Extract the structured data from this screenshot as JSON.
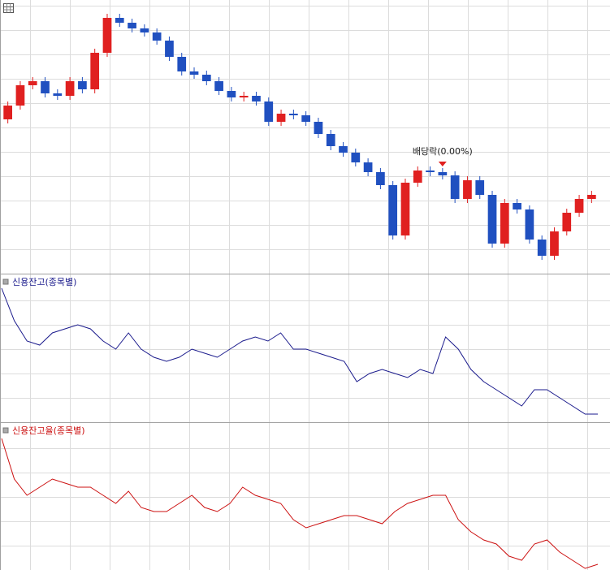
{
  "chart_data": [
    {
      "type": "candlestick",
      "annotation": "배당락(0.00%)",
      "open": [
        190,
        207,
        232,
        237,
        222,
        219,
        237,
        227,
        272,
        315,
        309,
        302,
        297,
        287,
        267,
        249,
        245,
        237,
        225,
        217,
        219,
        212,
        187,
        197,
        195,
        187,
        172,
        157,
        149,
        137,
        125,
        109,
        47,
        112,
        127,
        125,
        121,
        92,
        115,
        97,
        37,
        87,
        79,
        42,
        22,
        52,
        75,
        92
      ],
      "high": [
        212,
        237,
        242,
        242,
        227,
        242,
        242,
        277,
        320,
        320,
        314,
        307,
        302,
        292,
        272,
        254,
        250,
        242,
        230,
        224,
        224,
        217,
        202,
        202,
        200,
        192,
        177,
        162,
        154,
        142,
        130,
        114,
        117,
        132,
        132,
        130,
        126,
        120,
        120,
        102,
        92,
        92,
        84,
        47,
        57,
        80,
        97,
        102
      ],
      "low": [
        185,
        202,
        227,
        217,
        214,
        214,
        222,
        222,
        267,
        304,
        297,
        292,
        282,
        262,
        244,
        240,
        232,
        220,
        212,
        212,
        207,
        182,
        182,
        190,
        182,
        167,
        152,
        144,
        132,
        120,
        104,
        42,
        42,
        107,
        120,
        116,
        87,
        87,
        92,
        32,
        32,
        74,
        37,
        17,
        17,
        47,
        70,
        87
      ],
      "close": [
        207,
        232,
        237,
        222,
        219,
        237,
        227,
        272,
        315,
        309,
        302,
        297,
        287,
        267,
        249,
        245,
        237,
        225,
        217,
        219,
        212,
        187,
        197,
        195,
        187,
        172,
        157,
        149,
        137,
        125,
        109,
        47,
        112,
        127,
        125,
        121,
        92,
        115,
        97,
        37,
        87,
        79,
        42,
        22,
        52,
        75,
        92,
        97
      ],
      "up_color": "#e02020",
      "down_color": "#2050c0",
      "ylim": [
        0,
        337
      ]
    },
    {
      "type": "line",
      "series": [
        {
          "name": "신용잔고(종목별)",
          "color": "#1a1a8c",
          "values": [
            165,
            125,
            100,
            95,
            110,
            115,
            120,
            115,
            100,
            90,
            110,
            90,
            80,
            75,
            80,
            90,
            85,
            80,
            90,
            100,
            105,
            100,
            110,
            90,
            90,
            85,
            80,
            75,
            50,
            60,
            65,
            60,
            55,
            65,
            60,
            105,
            90,
            65,
            50,
            40,
            30,
            20,
            40,
            40,
            30,
            20,
            10,
            10
          ]
        }
      ],
      "ylim": [
        0,
        182
      ]
    },
    {
      "type": "line",
      "series": [
        {
          "name": "신용잔고율(종목별)",
          "color": "#cc1010",
          "values": [
            162,
            112,
            92,
            102,
            112,
            107,
            102,
            102,
            92,
            82,
            97,
            77,
            72,
            72,
            82,
            92,
            77,
            72,
            82,
            102,
            92,
            87,
            82,
            62,
            52,
            57,
            62,
            67,
            67,
            62,
            57,
            72,
            82,
            87,
            92,
            92,
            62,
            47,
            37,
            32,
            17,
            12,
            32,
            37,
            22,
            12,
            2,
            7
          ]
        }
      ],
      "ylim": [
        0,
        181
      ]
    }
  ]
}
